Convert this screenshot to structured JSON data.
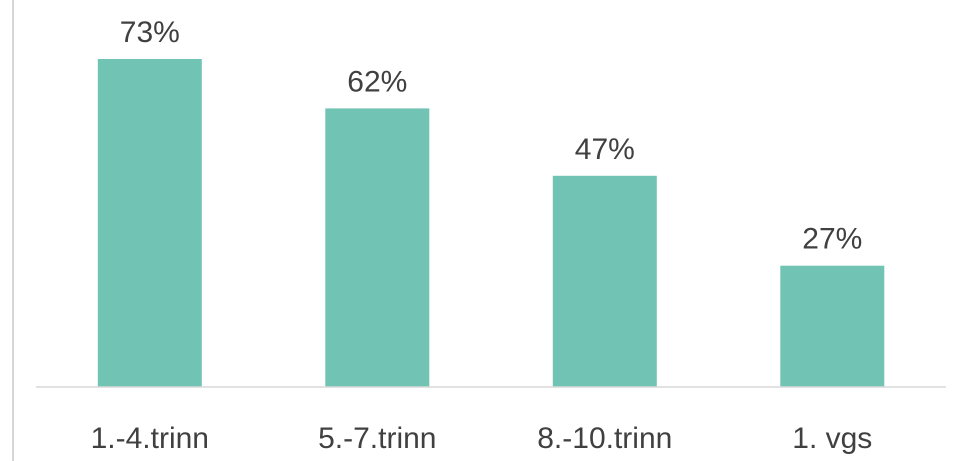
{
  "chart_data": {
    "type": "bar",
    "categories": [
      "1.-4.trinn",
      "5.-7.trinn",
      "8.-10.trinn",
      "1. vgs"
    ],
    "values": [
      73,
      62,
      47,
      27
    ],
    "data_labels": [
      "73%",
      "62%",
      "47%",
      "27%"
    ],
    "title": "",
    "xlabel": "",
    "ylabel": "",
    "ylim": [
      0,
      80
    ],
    "grid": false,
    "legend": "none",
    "bar_color": "#71c3b3"
  }
}
